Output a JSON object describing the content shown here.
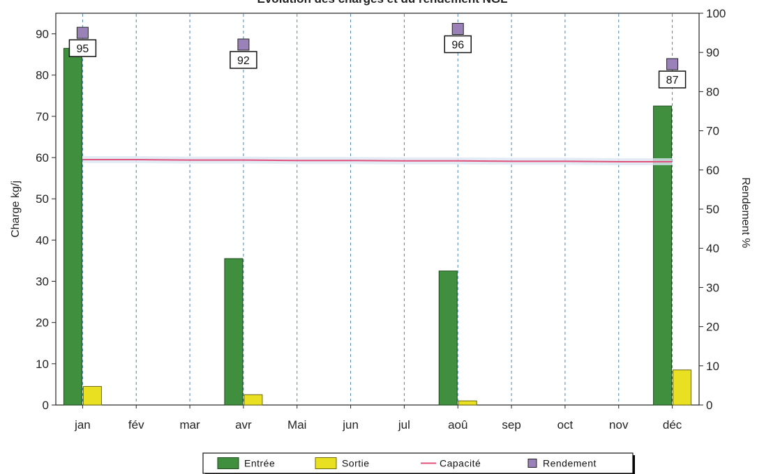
{
  "chart_data": {
    "type": "bar",
    "title": "Évolution des charges et du rendement NGL",
    "ylabel": "Charge kg/j",
    "y2label": "Rendement %",
    "ylim": [
      0,
      95
    ],
    "yticks": [
      0,
      10,
      20,
      30,
      40,
      50,
      60,
      70,
      80,
      90
    ],
    "y2lim": [
      0,
      100
    ],
    "y2ticks": [
      0,
      10,
      20,
      30,
      40,
      50,
      60,
      70,
      80,
      90,
      100
    ],
    "categories": [
      "jan",
      "fév",
      "mar",
      "avr",
      "Mai",
      "jun",
      "jul",
      "aoû",
      "sep",
      "oct",
      "nov",
      "déc"
    ],
    "series": [
      {
        "name": "Entrée",
        "type": "bar",
        "color": "#3f8f3f",
        "values": [
          86.5,
          null,
          null,
          35.5,
          null,
          null,
          null,
          32.5,
          null,
          null,
          null,
          72.5
        ]
      },
      {
        "name": "Sortie",
        "type": "bar",
        "color": "#e8e020",
        "values": [
          4.5,
          null,
          null,
          2.5,
          null,
          null,
          null,
          1,
          null,
          null,
          null,
          8.5
        ]
      },
      {
        "name": "Capacité",
        "type": "line",
        "color": "#e0507a",
        "values": [
          59.5,
          59.5,
          59.4,
          59.4,
          59.3,
          59.3,
          59.2,
          59.2,
          59.1,
          59.1,
          59.0,
          59.0
        ]
      },
      {
        "name": "Rendement",
        "type": "marker",
        "axis": "y2",
        "color": "#9a82b8",
        "values": [
          95,
          null,
          null,
          92,
          null,
          null,
          null,
          96,
          null,
          null,
          null,
          87
        ],
        "labels": [
          "95",
          "",
          "",
          "92",
          "",
          "",
          "",
          "96",
          "",
          "",
          "",
          "87"
        ]
      }
    ],
    "grid": "vertical-dashed",
    "legend_position": "bottom"
  }
}
